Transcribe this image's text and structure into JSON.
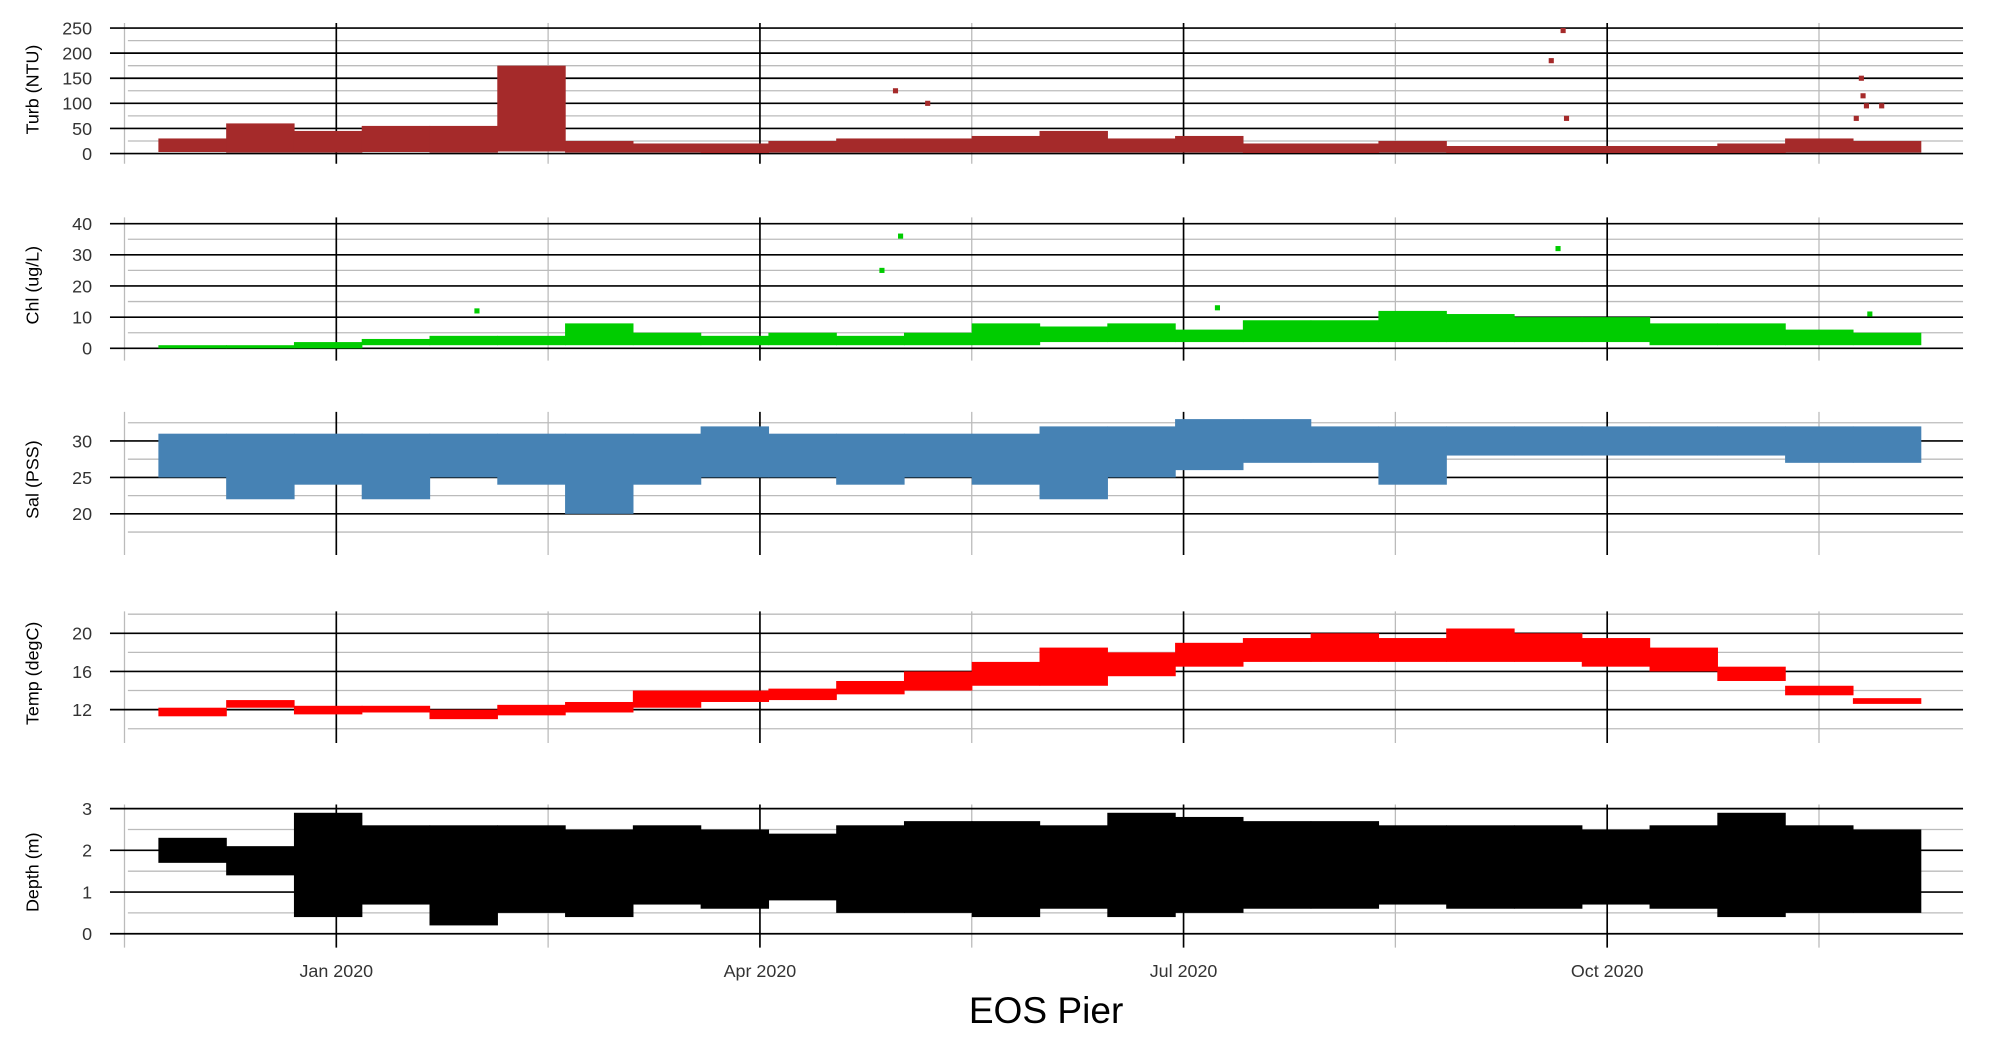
{
  "chart_data": {
    "type": "range",
    "xlabel": "EOS Pier",
    "xlim": [
      2019.877,
      2020.96
    ],
    "xticks": [
      {
        "value": 2020.0,
        "label": "Jan 2020"
      },
      {
        "value": 2020.25,
        "label": "Apr 2020"
      },
      {
        "value": 2020.5,
        "label": "Jul 2020"
      },
      {
        "value": 2020.75,
        "label": "Oct 2020"
      }
    ],
    "xminor": [
      2019.875,
      2020.125,
      2020.375,
      2020.625,
      2020.875
    ],
    "x": [
      2019.915,
      2019.955,
      2019.995,
      2020.035,
      2020.075,
      2020.115,
      2020.155,
      2020.195,
      2020.235,
      2020.275,
      2020.315,
      2020.355,
      2020.395,
      2020.435,
      2020.475,
      2020.515,
      2020.555,
      2020.595,
      2020.635,
      2020.675,
      2020.715,
      2020.755,
      2020.795,
      2020.835,
      2020.875,
      2020.915
    ],
    "grid": true,
    "panels": [
      {
        "ylabel": "Turb (NTU)",
        "color": "#a52a2a",
        "ylim": [
          -5,
          260
        ],
        "yticks": [
          0,
          50,
          100,
          150,
          200,
          250
        ],
        "yminor": [
          25,
          75,
          125,
          175,
          225
        ],
        "low": [
          3,
          2,
          2,
          3,
          2,
          4,
          2,
          2,
          1,
          2,
          2,
          2,
          2,
          2,
          2,
          2,
          1,
          1,
          2,
          1,
          1,
          1,
          1,
          1,
          2,
          2
        ],
        "high": [
          30,
          60,
          45,
          55,
          55,
          175,
          25,
          20,
          20,
          25,
          30,
          30,
          35,
          45,
          30,
          35,
          20,
          20,
          25,
          15,
          15,
          15,
          15,
          20,
          30,
          25
        ],
        "outliers": {
          "x": [
            2020.33,
            2020.349,
            2020.724,
            2020.717,
            2020.726,
            2020.9,
            2020.901,
            2020.903,
            2020.912,
            2020.897
          ],
          "y": [
            125,
            100,
            245,
            185,
            70,
            150,
            115,
            95,
            95,
            70
          ]
        }
      },
      {
        "ylabel": "Chl (ug/L)",
        "color": "#00cc00",
        "ylim": [
          -1.5,
          42
        ],
        "yticks": [
          0,
          10,
          20,
          30,
          40
        ],
        "yminor": [
          5,
          15,
          25,
          35
        ],
        "low": [
          0,
          0,
          0,
          1,
          1,
          1,
          1,
          1,
          1,
          1,
          1,
          1,
          1,
          2,
          2,
          2,
          2,
          2,
          2,
          2,
          2,
          2,
          1,
          1,
          1,
          1
        ],
        "high": [
          1,
          1,
          2,
          3,
          4,
          4,
          8,
          5,
          4,
          5,
          4,
          5,
          8,
          7,
          8,
          6,
          9,
          9,
          12,
          11,
          10,
          10,
          8,
          8,
          6,
          5
        ],
        "outliers": {
          "x": [
            2020.083,
            2020.333,
            2020.322,
            2020.52,
            2020.721,
            2020.905
          ],
          "y": [
            12,
            36,
            25,
            13,
            32,
            11
          ]
        }
      },
      {
        "ylabel": "Sal (PSS)",
        "color": "#4682b4",
        "ylim": [
          15.4,
          34
        ],
        "yticks": [
          20,
          25,
          30
        ],
        "yminor": [
          17.5,
          22.5,
          27.5,
          32.5
        ],
        "low": [
          25,
          22,
          24,
          22,
          25,
          24,
          20,
          24,
          25,
          25,
          24,
          25,
          24,
          22,
          25,
          26,
          27,
          27,
          24,
          28,
          28,
          28,
          28,
          28,
          27,
          27
        ],
        "high": [
          31,
          31,
          31,
          31,
          31,
          31,
          31,
          31,
          32,
          31,
          31,
          31,
          31,
          32,
          32,
          33,
          33,
          32,
          32,
          32,
          32,
          32,
          32,
          32,
          32,
          32
        ]
      },
      {
        "ylabel": "Temp (degC)",
        "color": "#ff0000",
        "ylim": [
          9.3,
          22.3
        ],
        "yticks": [
          12,
          16,
          20
        ],
        "yminor": [
          10,
          14,
          18,
          22
        ],
        "low": [
          11.3,
          12.2,
          11.5,
          11.7,
          11,
          11.4,
          11.7,
          12.2,
          12.8,
          13,
          13.6,
          14,
          14.5,
          14.5,
          15.5,
          16.5,
          17,
          17,
          17,
          17,
          17,
          16.5,
          16,
          15,
          13.5,
          12.6
        ],
        "high": [
          12.2,
          13,
          12.4,
          12.4,
          12,
          12.5,
          12.8,
          14,
          14,
          14.2,
          15,
          16,
          17,
          18.5,
          18,
          19,
          19.5,
          20,
          19.5,
          20.5,
          20,
          19.5,
          18.5,
          16.5,
          14.5,
          13.2
        ]
      },
      {
        "ylabel": "Depth (m)",
        "color": "#000000",
        "ylim": [
          -0.15,
          3.1
        ],
        "yticks": [
          0,
          1,
          2,
          3
        ],
        "yminor": [
          0.5,
          1.5,
          2.5
        ],
        "low": [
          1.7,
          1.4,
          0.4,
          0.7,
          0.2,
          0.5,
          0.4,
          0.7,
          0.6,
          0.8,
          0.5,
          0.5,
          0.4,
          0.6,
          0.4,
          0.5,
          0.6,
          0.6,
          0.7,
          0.6,
          0.6,
          0.7,
          0.6,
          0.4,
          0.5,
          0.5
        ],
        "high": [
          2.3,
          2.1,
          2.9,
          2.6,
          2.6,
          2.6,
          2.5,
          2.6,
          2.5,
          2.4,
          2.6,
          2.7,
          2.7,
          2.6,
          2.9,
          2.8,
          2.7,
          2.7,
          2.6,
          2.6,
          2.6,
          2.5,
          2.6,
          2.9,
          2.6,
          2.5
        ]
      }
    ]
  }
}
